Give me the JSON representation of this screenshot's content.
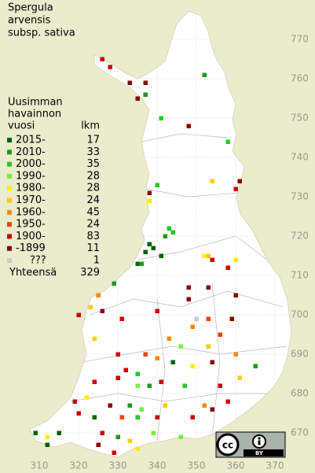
{
  "title": [
    "Spergula",
    "arvensis",
    "subsp. sativa"
  ],
  "legend": {
    "header": [
      "Uusimman",
      "havainnon",
      "vuosi"
    ],
    "count_header": "lkm",
    "items": [
      {
        "label": "2015-",
        "count": 17,
        "color": "#006400"
      },
      {
        "label": "2010-",
        "count": 33,
        "color": "#1f9a1f"
      },
      {
        "label": "2000-",
        "count": 35,
        "color": "#22cc22"
      },
      {
        "label": "1990-",
        "count": 28,
        "color": "#77ee44"
      },
      {
        "label": "1980-",
        "count": 28,
        "color": "#ffee00"
      },
      {
        "label": "1970-",
        "count": 24,
        "color": "#ffcc00"
      },
      {
        "label": "1960-",
        "count": 45,
        "color": "#ff8800"
      },
      {
        "label": "1950-",
        "count": 24,
        "color": "#ee4400"
      },
      {
        "label": "1900-",
        "count": 83,
        "color": "#cc0000"
      },
      {
        "label": "-1899",
        "count": 11,
        "color": "#880000"
      },
      {
        "label": "???",
        "count": 1,
        "color": "#cccccc"
      }
    ],
    "total_label": "Yhteensä",
    "total": 329
  },
  "map": {
    "xlim": [
      300,
      380
    ],
    "ylim": [
      660,
      780
    ],
    "xticks": [
      310,
      320,
      330,
      340,
      350,
      360,
      370
    ],
    "yticks": [
      670,
      680,
      690,
      700,
      710,
      720,
      730,
      740,
      750,
      760,
      770
    ],
    "points": [
      {
        "x": 326,
        "y": 765,
        "period": 8
      },
      {
        "x": 328,
        "y": 763,
        "period": 8
      },
      {
        "x": 352,
        "y": 761,
        "period": 1
      },
      {
        "x": 333,
        "y": 759,
        "period": 9
      },
      {
        "x": 337,
        "y": 759,
        "period": 9
      },
      {
        "x": 335,
        "y": 755,
        "period": 9
      },
      {
        "x": 337,
        "y": 756,
        "period": 1
      },
      {
        "x": 341,
        "y": 750,
        "period": 2
      },
      {
        "x": 348,
        "y": 748,
        "period": 9
      },
      {
        "x": 358,
        "y": 744,
        "period": 2
      },
      {
        "x": 354,
        "y": 734,
        "period": 5
      },
      {
        "x": 361,
        "y": 734,
        "period": 9
      },
      {
        "x": 338,
        "y": 731,
        "period": 9
      },
      {
        "x": 338,
        "y": 729,
        "period": 4
      },
      {
        "x": 340,
        "y": 733,
        "period": 2
      },
      {
        "x": 360,
        "y": 732,
        "period": 8
      },
      {
        "x": 343,
        "y": 722,
        "period": 2
      },
      {
        "x": 344,
        "y": 721,
        "period": 2
      },
      {
        "x": 342,
        "y": 720,
        "period": 1
      },
      {
        "x": 338,
        "y": 718,
        "period": 0
      },
      {
        "x": 337,
        "y": 716,
        "period": 0
      },
      {
        "x": 339,
        "y": 717,
        "period": 0
      },
      {
        "x": 341,
        "y": 715,
        "period": 0
      },
      {
        "x": 335,
        "y": 713,
        "period": 0
      },
      {
        "x": 336,
        "y": 713,
        "period": 1
      },
      {
        "x": 353,
        "y": 715,
        "period": 5
      },
      {
        "x": 354,
        "y": 714,
        "period": 8
      },
      {
        "x": 352,
        "y": 715,
        "period": 4
      },
      {
        "x": 358,
        "y": 712,
        "period": 8
      },
      {
        "x": 360,
        "y": 714,
        "period": 4
      },
      {
        "x": 329,
        "y": 708,
        "period": 1
      },
      {
        "x": 325,
        "y": 705,
        "period": 6
      },
      {
        "x": 353,
        "y": 707,
        "period": 9
      },
      {
        "x": 348,
        "y": 707,
        "period": 9
      },
      {
        "x": 360,
        "y": 705,
        "period": 9
      },
      {
        "x": 348,
        "y": 704,
        "period": 9
      },
      {
        "x": 323,
        "y": 702,
        "period": 5
      },
      {
        "x": 326,
        "y": 701,
        "period": 9
      },
      {
        "x": 320,
        "y": 700,
        "period": 8
      },
      {
        "x": 331,
        "y": 699,
        "period": 8
      },
      {
        "x": 340,
        "y": 701,
        "period": 8
      },
      {
        "x": 350,
        "y": 699,
        "period": 10
      },
      {
        "x": 353,
        "y": 699,
        "period": 7
      },
      {
        "x": 349,
        "y": 697,
        "period": 6
      },
      {
        "x": 359,
        "y": 699,
        "period": 9
      },
      {
        "x": 324,
        "y": 694,
        "period": 5
      },
      {
        "x": 343,
        "y": 694,
        "period": 6
      },
      {
        "x": 346,
        "y": 692,
        "period": 3
      },
      {
        "x": 353,
        "y": 692,
        "period": 5
      },
      {
        "x": 356,
        "y": 695,
        "period": 7
      },
      {
        "x": 330,
        "y": 690,
        "period": 8
      },
      {
        "x": 337,
        "y": 690,
        "period": 7
      },
      {
        "x": 340,
        "y": 689,
        "period": 6
      },
      {
        "x": 344,
        "y": 688,
        "period": 0
      },
      {
        "x": 349,
        "y": 687,
        "period": 4
      },
      {
        "x": 354,
        "y": 688,
        "period": 9
      },
      {
        "x": 360,
        "y": 690,
        "period": 6
      },
      {
        "x": 365,
        "y": 687,
        "period": 1
      },
      {
        "x": 332,
        "y": 686,
        "period": 8
      },
      {
        "x": 335,
        "y": 685,
        "period": 2
      },
      {
        "x": 330,
        "y": 684,
        "period": 8
      },
      {
        "x": 324,
        "y": 683,
        "period": 8
      },
      {
        "x": 335,
        "y": 682,
        "period": 3
      },
      {
        "x": 338,
        "y": 682,
        "period": 1
      },
      {
        "x": 341,
        "y": 683,
        "period": 8
      },
      {
        "x": 347,
        "y": 682,
        "period": 2
      },
      {
        "x": 356,
        "y": 682,
        "period": 8
      },
      {
        "x": 361,
        "y": 684,
        "period": 5
      },
      {
        "x": 322,
        "y": 679,
        "period": 4
      },
      {
        "x": 319,
        "y": 678,
        "period": 8
      },
      {
        "x": 328,
        "y": 677,
        "period": 9
      },
      {
        "x": 333,
        "y": 677,
        "period": 1
      },
      {
        "x": 336,
        "y": 676,
        "period": 3
      },
      {
        "x": 342,
        "y": 677,
        "period": 5
      },
      {
        "x": 352,
        "y": 677,
        "period": 6
      },
      {
        "x": 358,
        "y": 678,
        "period": 8
      },
      {
        "x": 320,
        "y": 675,
        "period": 8
      },
      {
        "x": 324,
        "y": 674,
        "period": 0
      },
      {
        "x": 331,
        "y": 674,
        "period": 7
      },
      {
        "x": 335,
        "y": 674,
        "period": 2
      },
      {
        "x": 340,
        "y": 674,
        "period": 8
      },
      {
        "x": 349,
        "y": 674,
        "period": 8
      },
      {
        "x": 354,
        "y": 676,
        "period": 9
      },
      {
        "x": 309,
        "y": 670,
        "period": 0
      },
      {
        "x": 315,
        "y": 670,
        "period": 0
      },
      {
        "x": 312,
        "y": 669,
        "period": 4
      },
      {
        "x": 326,
        "y": 670,
        "period": 8
      },
      {
        "x": 330,
        "y": 669,
        "period": 1
      },
      {
        "x": 333,
        "y": 668,
        "period": 5
      },
      {
        "x": 339,
        "y": 670,
        "period": 3
      },
      {
        "x": 346,
        "y": 669,
        "period": 3
      },
      {
        "x": 312,
        "y": 667,
        "period": 0
      },
      {
        "x": 325,
        "y": 667,
        "period": 9
      },
      {
        "x": 329,
        "y": 665,
        "period": 8
      },
      {
        "x": 335,
        "y": 666,
        "period": 4
      }
    ]
  },
  "badge": {
    "cc": "cc",
    "by": "BY"
  }
}
